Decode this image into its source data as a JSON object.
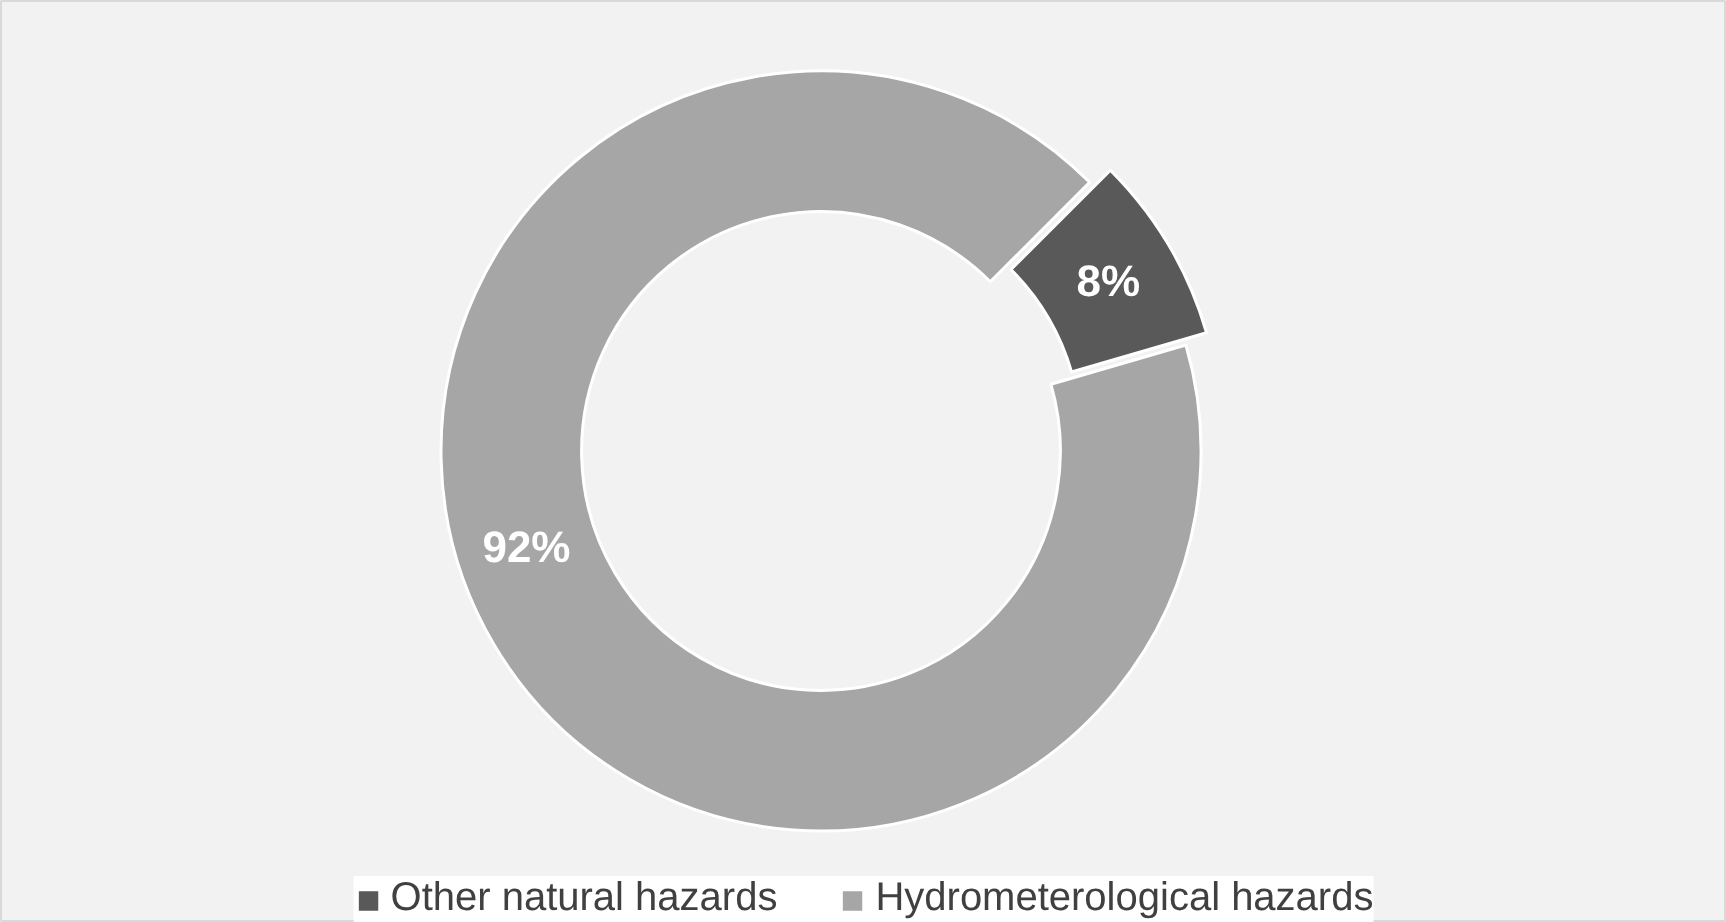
{
  "chart_data": {
    "type": "donut",
    "categories": [
      "Other natural hazards",
      "Hydrometerological hazards"
    ],
    "values": [
      8,
      92
    ],
    "colors": [
      "#595959",
      "#a6a6a6"
    ],
    "value_labels": [
      "8%",
      "92%"
    ],
    "legend": "bottom"
  }
}
